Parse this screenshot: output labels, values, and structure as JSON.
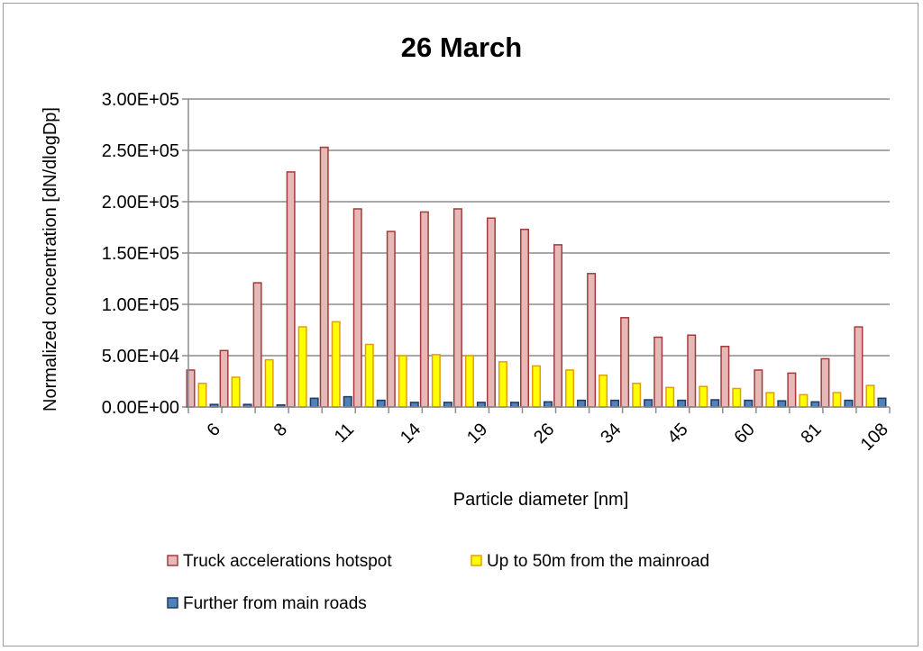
{
  "chart_data": {
    "type": "bar",
    "title": "26 March",
    "xlabel": "Particle diameter [nm]",
    "ylabel": "Normalized concentration [dN/dlogDp]",
    "ylim": [
      0,
      300000
    ],
    "yticks": [
      "0.00E+00",
      "5.00E+04",
      "1.00E+05",
      "1.50E+05",
      "2.00E+05",
      "2.50E+05",
      "3.00E+05"
    ],
    "ytick_values": [
      0,
      50000,
      100000,
      150000,
      200000,
      250000,
      300000
    ],
    "categories": [
      "6",
      "",
      "8",
      "",
      "11",
      "",
      "14",
      "",
      "19",
      "",
      "26",
      "",
      "34",
      "",
      "45",
      "",
      "60",
      "",
      "81",
      "",
      "108"
    ],
    "grid": "horizontal",
    "legend_position": "bottom",
    "series": [
      {
        "name": "Truck accelerations hotspot",
        "color": "#e6b8b7",
        "stroke": "#a33b3b",
        "values": [
          36000,
          55000,
          121000,
          229000,
          253000,
          193000,
          171000,
          190000,
          193000,
          184000,
          173000,
          158000,
          130000,
          87000,
          68000,
          70000,
          59000,
          36000,
          33000,
          47000,
          78000
        ]
      },
      {
        "name": "Up to 50m from the mainroad",
        "color": "#ffff00",
        "stroke": "#e39b17",
        "values": [
          23000,
          29000,
          46000,
          78000,
          83000,
          61000,
          50000,
          51000,
          50000,
          44000,
          40000,
          36000,
          31000,
          23000,
          19000,
          20000,
          18000,
          14000,
          12000,
          14000,
          21000
        ]
      },
      {
        "name": "Further from main roads",
        "color": "#4f81bd",
        "stroke": "#1f3a5f",
        "values": [
          2500,
          2500,
          2000,
          8500,
          10000,
          6500,
          4500,
          4500,
          4500,
          4500,
          5000,
          6500,
          6500,
          7000,
          6500,
          7000,
          6500,
          6000,
          5000,
          6500,
          8500
        ]
      }
    ]
  }
}
